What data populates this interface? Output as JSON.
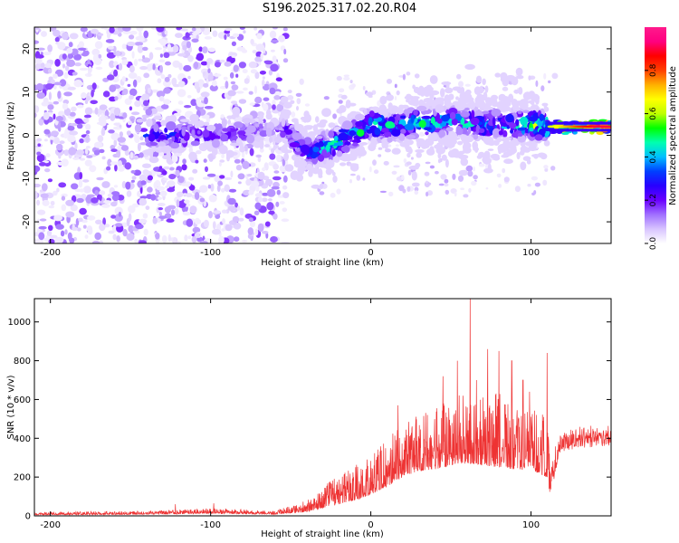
{
  "title": "S196.2025.317.02.20.R04",
  "chart_data": [
    {
      "type": "heatmap",
      "xlabel": "Height of straight line (km)",
      "ylabel": "Frequency (Hz)",
      "xlim": [
        -210,
        150
      ],
      "ylim": [
        -25,
        25
      ],
      "xticks": [
        -200,
        -100,
        0,
        100
      ],
      "yticks": [
        -20,
        -10,
        0,
        10,
        20
      ],
      "colorbar": {
        "label": "Normalized spectral amplitude",
        "range": [
          0,
          1
        ],
        "ticks": [
          "0.0",
          "0.2",
          "0.4",
          "0.6",
          "0.8"
        ],
        "colors": [
          "#ffffff",
          "#d8c4ff",
          "#a070ff",
          "#6a00ff",
          "#2800ff",
          "#0040ff",
          "#00bfff",
          "#00ffb0",
          "#00ff00",
          "#bfff00",
          "#ffff00",
          "#ffb000",
          "#ff4000",
          "#ff0000",
          "#ff0080",
          "#ff1a8c"
        ]
      },
      "ridge": {
        "x": [
          -135,
          -110,
          -100,
          -88,
          -70,
          -60,
          -52,
          -45,
          -38,
          -30,
          -20,
          -10,
          0,
          10,
          20,
          30,
          40,
          50,
          60,
          70,
          80,
          90,
          100,
          110,
          120,
          130,
          140,
          150
        ],
        "freq": [
          0,
          0,
          0,
          0.5,
          1,
          1.5,
          1,
          -2,
          -4,
          -3,
          -1.5,
          0.5,
          2.5,
          2,
          2.5,
          3,
          3,
          3.5,
          3,
          2.5,
          2.5,
          2.5,
          2.5,
          2,
          2,
          2,
          2,
          2
        ],
        "amplitude": [
          0.3,
          0.28,
          0.22,
          0.2,
          0.18,
          0.12,
          0.25,
          0.35,
          0.4,
          0.45,
          0.5,
          0.48,
          0.55,
          0.45,
          0.45,
          0.5,
          0.45,
          0.4,
          0.45,
          0.4,
          0.4,
          0.45,
          0.6,
          0.6,
          0.7,
          0.8,
          0.9,
          0.9
        ]
      }
    },
    {
      "type": "line",
      "series": [
        {
          "name": "SNR",
          "color": "#ee3333"
        }
      ],
      "xlabel": "Height of straight line (km)",
      "ylabel": "SNR (10 * v/v)",
      "xlim": [
        -210,
        150
      ],
      "ylim": [
        0,
        1120
      ],
      "xticks": [
        -200,
        -100,
        0,
        100
      ],
      "yticks": [
        0,
        200,
        400,
        600,
        800,
        1000
      ],
      "envelope": {
        "x": [
          -210,
          -140,
          -100,
          -60,
          -40,
          -30,
          -20,
          -10,
          0,
          10,
          20,
          30,
          40,
          50,
          60,
          70,
          80,
          90,
          100,
          110,
          112,
          118,
          130,
          150
        ],
        "base": [
          5,
          8,
          12,
          8,
          20,
          40,
          60,
          80,
          110,
          150,
          200,
          230,
          240,
          260,
          270,
          260,
          250,
          240,
          240,
          200,
          100,
          320,
          350,
          360
        ],
        "high": [
          20,
          25,
          40,
          25,
          80,
          150,
          220,
          260,
          300,
          400,
          480,
          520,
          560,
          600,
          640,
          620,
          640,
          600,
          560,
          520,
          300,
          430,
          470,
          470
        ]
      },
      "peaks": [
        {
          "x": -122,
          "y": 60
        },
        {
          "x": -98,
          "y": 65
        },
        {
          "x": 17,
          "y": 570
        },
        {
          "x": 45,
          "y": 720
        },
        {
          "x": 54,
          "y": 800
        },
        {
          "x": 62,
          "y": 1120
        },
        {
          "x": 66,
          "y": 700
        },
        {
          "x": 73,
          "y": 860
        },
        {
          "x": 80,
          "y": 850
        },
        {
          "x": 88,
          "y": 800
        },
        {
          "x": 95,
          "y": 700
        },
        {
          "x": 99,
          "y": 640
        },
        {
          "x": 110,
          "y": 840
        }
      ]
    }
  ]
}
